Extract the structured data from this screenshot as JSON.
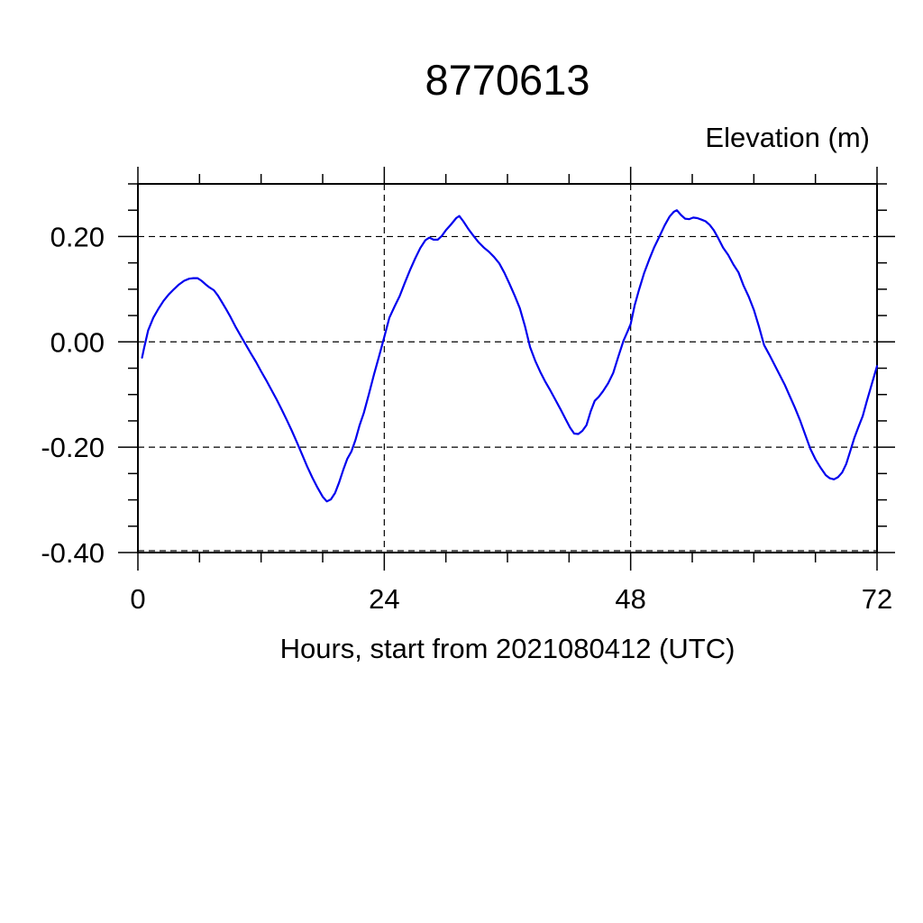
{
  "title": "8770613",
  "y_axis_unit_label": "Elevation (m)",
  "x_axis_label": "Hours, start from 2021080412 (UTC)",
  "chart_data": {
    "type": "line",
    "title": "8770613",
    "xlabel": "Hours, start from 2021080412 (UTC)",
    "ylabel": "Elevation (m)",
    "xlim": [
      0,
      72
    ],
    "ylim": [
      -0.4,
      0.3
    ],
    "x_major_ticks": [
      0,
      24,
      48,
      72
    ],
    "x_tick_labels": [
      "0",
      "24",
      "48",
      "72"
    ],
    "x_minor_tick_interval": 6,
    "y_major_ticks": [
      0.2,
      0.0,
      -0.2,
      -0.4
    ],
    "y_tick_labels": [
      "0.20",
      "0.00",
      "-0.20",
      "-0.40"
    ],
    "y_minor_tick_interval": 0.05,
    "grid_x": [
      24,
      48
    ],
    "grid_y": [
      0.2,
      0.0,
      -0.2,
      -0.4
    ],
    "grid_style": "dashed",
    "legend": "none",
    "line_color": "#0000EE",
    "frame_color": "#000000",
    "series": [
      {
        "name": "elevation",
        "points": [
          [
            0.4,
            -0.03
          ],
          [
            0.6,
            -0.012
          ],
          [
            0.8,
            0.005
          ],
          [
            1.0,
            0.022
          ],
          [
            1.5,
            0.046
          ],
          [
            2.0,
            0.063
          ],
          [
            2.5,
            0.078
          ],
          [
            3.0,
            0.09
          ],
          [
            3.5,
            0.1
          ],
          [
            4.0,
            0.109
          ],
          [
            4.5,
            0.116
          ],
          [
            5.0,
            0.12
          ],
          [
            5.4,
            0.121
          ],
          [
            5.8,
            0.121
          ],
          [
            6.2,
            0.116
          ],
          [
            6.6,
            0.109
          ],
          [
            7.0,
            0.103
          ],
          [
            7.4,
            0.098
          ],
          [
            7.8,
            0.088
          ],
          [
            8.2,
            0.075
          ],
          [
            8.6,
            0.062
          ],
          [
            9.0,
            0.048
          ],
          [
            9.5,
            0.029
          ],
          [
            10.0,
            0.012
          ],
          [
            10.5,
            -0.005
          ],
          [
            11.0,
            -0.022
          ],
          [
            11.5,
            -0.038
          ],
          [
            12.0,
            -0.056
          ],
          [
            12.5,
            -0.073
          ],
          [
            13.0,
            -0.091
          ],
          [
            13.5,
            -0.109
          ],
          [
            14.0,
            -0.128
          ],
          [
            14.5,
            -0.148
          ],
          [
            15.0,
            -0.169
          ],
          [
            15.5,
            -0.191
          ],
          [
            16.0,
            -0.214
          ],
          [
            16.5,
            -0.237
          ],
          [
            17.0,
            -0.258
          ],
          [
            17.5,
            -0.277
          ],
          [
            18.0,
            -0.294
          ],
          [
            18.4,
            -0.303
          ],
          [
            18.8,
            -0.299
          ],
          [
            19.2,
            -0.287
          ],
          [
            19.6,
            -0.267
          ],
          [
            20.0,
            -0.243
          ],
          [
            20.4,
            -0.222
          ],
          [
            20.8,
            -0.208
          ],
          [
            21.2,
            -0.186
          ],
          [
            21.6,
            -0.158
          ],
          [
            22.0,
            -0.135
          ],
          [
            22.5,
            -0.099
          ],
          [
            23.0,
            -0.062
          ],
          [
            23.5,
            -0.027
          ],
          [
            24.0,
            0.009
          ],
          [
            24.5,
            0.046
          ],
          [
            25.0,
            0.067
          ],
          [
            25.5,
            0.087
          ],
          [
            26.0,
            0.112
          ],
          [
            26.5,
            0.136
          ],
          [
            27.0,
            0.158
          ],
          [
            27.5,
            0.178
          ],
          [
            28.0,
            0.193
          ],
          [
            28.4,
            0.198
          ],
          [
            28.8,
            0.194
          ],
          [
            29.2,
            0.194
          ],
          [
            29.6,
            0.201
          ],
          [
            30.0,
            0.212
          ],
          [
            30.5,
            0.223
          ],
          [
            31.0,
            0.235
          ],
          [
            31.3,
            0.239
          ],
          [
            31.7,
            0.229
          ],
          [
            32.2,
            0.214
          ],
          [
            32.7,
            0.201
          ],
          [
            33.2,
            0.189
          ],
          [
            33.7,
            0.179
          ],
          [
            34.2,
            0.171
          ],
          [
            34.7,
            0.161
          ],
          [
            35.2,
            0.149
          ],
          [
            35.7,
            0.131
          ],
          [
            36.2,
            0.11
          ],
          [
            36.7,
            0.088
          ],
          [
            37.2,
            0.064
          ],
          [
            37.7,
            0.03
          ],
          [
            38.2,
            -0.01
          ],
          [
            38.7,
            -0.036
          ],
          [
            39.2,
            -0.057
          ],
          [
            39.7,
            -0.076
          ],
          [
            40.2,
            -0.093
          ],
          [
            40.7,
            -0.111
          ],
          [
            41.2,
            -0.129
          ],
          [
            41.7,
            -0.148
          ],
          [
            42.1,
            -0.163
          ],
          [
            42.5,
            -0.174
          ],
          [
            42.9,
            -0.175
          ],
          [
            43.3,
            -0.169
          ],
          [
            43.7,
            -0.158
          ],
          [
            44.1,
            -0.132
          ],
          [
            44.5,
            -0.112
          ],
          [
            44.9,
            -0.104
          ],
          [
            45.3,
            -0.094
          ],
          [
            45.8,
            -0.079
          ],
          [
            46.3,
            -0.059
          ],
          [
            46.8,
            -0.028
          ],
          [
            47.3,
            0.002
          ],
          [
            47.7,
            0.02
          ],
          [
            48.0,
            0.034
          ],
          [
            48.4,
            0.07
          ],
          [
            48.8,
            0.098
          ],
          [
            49.3,
            0.13
          ],
          [
            49.8,
            0.156
          ],
          [
            50.3,
            0.18
          ],
          [
            50.8,
            0.2
          ],
          [
            51.3,
            0.221
          ],
          [
            51.8,
            0.238
          ],
          [
            52.2,
            0.247
          ],
          [
            52.5,
            0.25
          ],
          [
            52.9,
            0.241
          ],
          [
            53.3,
            0.234
          ],
          [
            53.7,
            0.233
          ],
          [
            54.1,
            0.236
          ],
          [
            54.5,
            0.235
          ],
          [
            54.9,
            0.232
          ],
          [
            55.3,
            0.229
          ],
          [
            55.7,
            0.222
          ],
          [
            56.1,
            0.212
          ],
          [
            56.5,
            0.198
          ],
          [
            57.0,
            0.179
          ],
          [
            57.5,
            0.165
          ],
          [
            58.0,
            0.147
          ],
          [
            58.5,
            0.132
          ],
          [
            59.0,
            0.107
          ],
          [
            59.5,
            0.086
          ],
          [
            60.0,
            0.061
          ],
          [
            60.5,
            0.029
          ],
          [
            61.0,
            -0.006
          ],
          [
            61.5,
            -0.024
          ],
          [
            62.0,
            -0.043
          ],
          [
            62.5,
            -0.062
          ],
          [
            63.0,
            -0.081
          ],
          [
            63.5,
            -0.103
          ],
          [
            64.0,
            -0.125
          ],
          [
            64.5,
            -0.149
          ],
          [
            65.0,
            -0.176
          ],
          [
            65.5,
            -0.203
          ],
          [
            66.0,
            -0.223
          ],
          [
            66.5,
            -0.239
          ],
          [
            67.0,
            -0.253
          ],
          [
            67.4,
            -0.259
          ],
          [
            67.8,
            -0.261
          ],
          [
            68.2,
            -0.257
          ],
          [
            68.6,
            -0.248
          ],
          [
            69.0,
            -0.232
          ],
          [
            69.4,
            -0.207
          ],
          [
            69.8,
            -0.182
          ],
          [
            70.2,
            -0.161
          ],
          [
            70.6,
            -0.141
          ],
          [
            71.0,
            -0.113
          ],
          [
            71.4,
            -0.086
          ],
          [
            71.7,
            -0.066
          ],
          [
            72.0,
            -0.046
          ]
        ]
      }
    ]
  }
}
